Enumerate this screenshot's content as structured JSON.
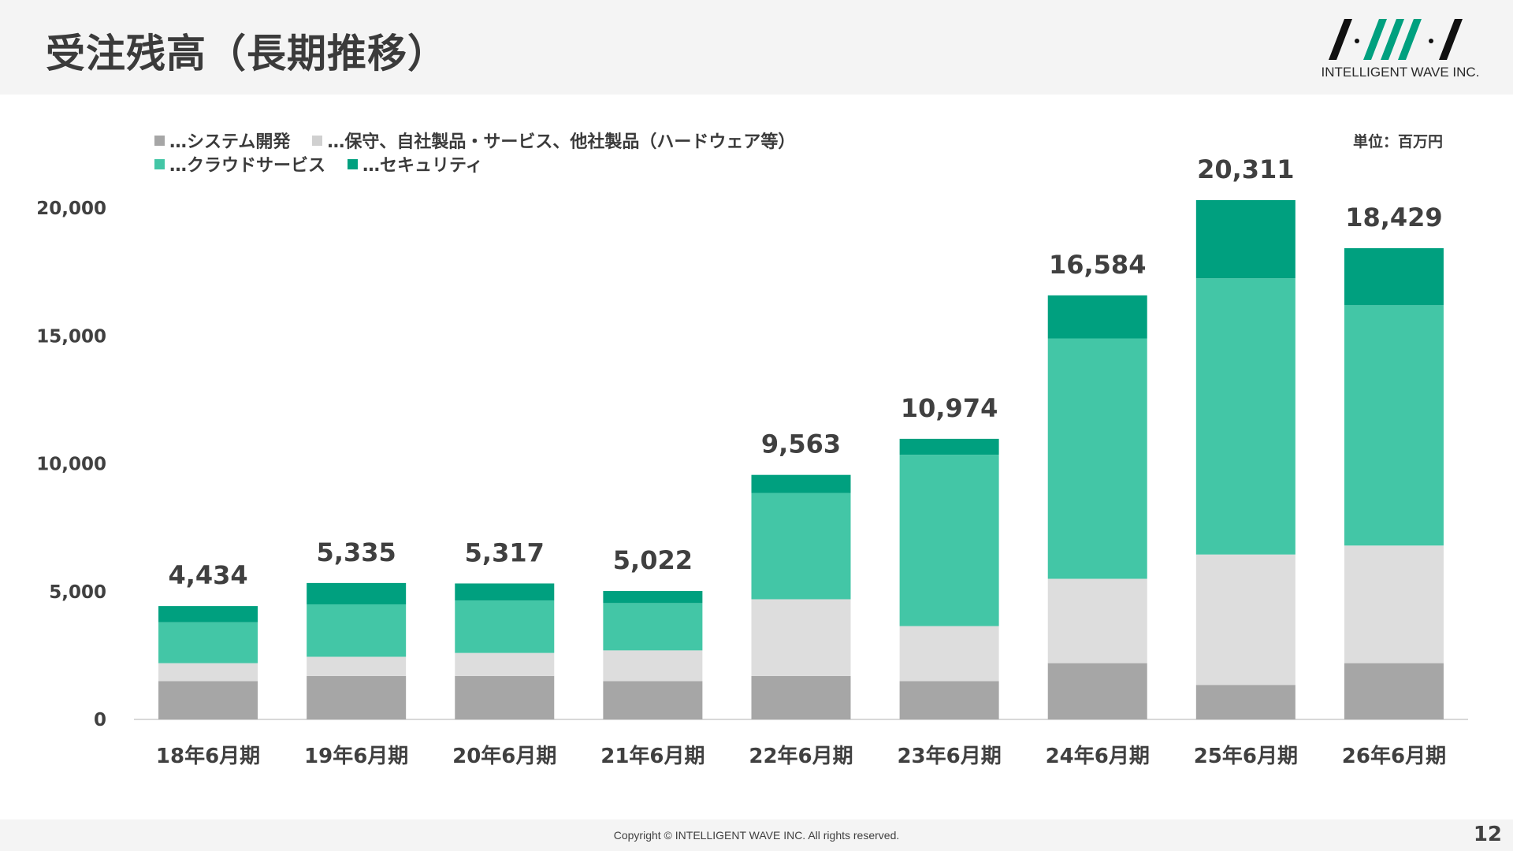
{
  "page": {
    "title": "受注残高（長期推移）",
    "number": "12"
  },
  "logo": {
    "company": "INTELLIGENT WAVE INC."
  },
  "footer": {
    "copyright": "Copyright © INTELLIGENT WAVE INC. All rights reserved."
  },
  "chart_data": {
    "type": "bar",
    "stacked": true,
    "unit_label": "単位：百万円",
    "categories": [
      "18年6月期",
      "19年6月期",
      "20年6月期",
      "21年6月期",
      "22年6月期",
      "23年6月期",
      "24年6月期",
      "25年6月期",
      "26年6月期"
    ],
    "series": [
      {
        "name": "…システム開発",
        "color": "#a6a6a6",
        "values": [
          1500,
          1700,
          1700,
          1500,
          1700,
          1500,
          2200,
          1350,
          2200
        ]
      },
      {
        "name": "…保守、自社製品・サービス、他社製品（ハードウェア等）",
        "color": "#dddddd",
        "values": [
          700,
          750,
          900,
          1200,
          3000,
          2150,
          3300,
          5100,
          4600
        ]
      },
      {
        "name": "…クラウドサービス",
        "color": "#43c6a6",
        "values": [
          1600,
          2050,
          2050,
          1850,
          4150,
          6700,
          9400,
          10800,
          9400
        ]
      },
      {
        "name": "…セキュリティ",
        "color": "#00a07f",
        "values": [
          634,
          835,
          667,
          472,
          713,
          624,
          1684,
          3061,
          2229
        ]
      }
    ],
    "totals": [
      "4,434",
      "5,335",
      "5,317",
      "5,022",
      "9,563",
      "10,974",
      "16,584",
      "20,311",
      "18,429"
    ],
    "ylim": [
      0,
      20000
    ],
    "yticks": [
      "0",
      "5,000",
      "10,000",
      "15,000",
      "20,000"
    ],
    "grid": false,
    "legend_position": "top-left"
  }
}
